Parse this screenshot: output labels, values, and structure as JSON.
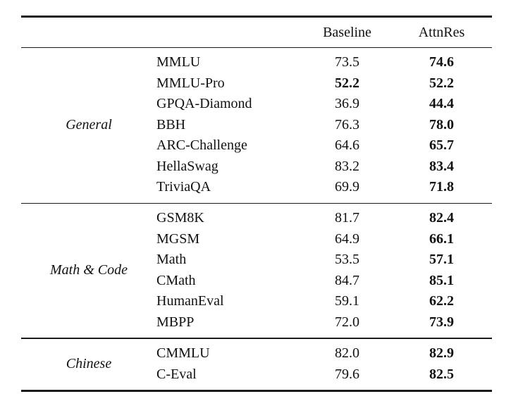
{
  "table": {
    "header": {
      "baseline": "Baseline",
      "attnres": "AttnRes"
    },
    "sections": [
      {
        "category": "General",
        "rows": [
          {
            "benchmark": "MMLU",
            "baseline": "73.5",
            "baseline_bold": false,
            "attnres": "74.6",
            "attnres_bold": true
          },
          {
            "benchmark": "MMLU-Pro",
            "baseline": "52.2",
            "baseline_bold": true,
            "attnres": "52.2",
            "attnres_bold": true
          },
          {
            "benchmark": "GPQA-Diamond",
            "baseline": "36.9",
            "baseline_bold": false,
            "attnres": "44.4",
            "attnres_bold": true
          },
          {
            "benchmark": "BBH",
            "baseline": "76.3",
            "baseline_bold": false,
            "attnres": "78.0",
            "attnres_bold": true
          },
          {
            "benchmark": "ARC-Challenge",
            "baseline": "64.6",
            "baseline_bold": false,
            "attnres": "65.7",
            "attnres_bold": true
          },
          {
            "benchmark": "HellaSwag",
            "baseline": "83.2",
            "baseline_bold": false,
            "attnres": "83.4",
            "attnres_bold": true
          },
          {
            "benchmark": "TriviaQA",
            "baseline": "69.9",
            "baseline_bold": false,
            "attnres": "71.8",
            "attnres_bold": true
          }
        ]
      },
      {
        "category": "Math & Code",
        "rows": [
          {
            "benchmark": "GSM8K",
            "baseline": "81.7",
            "baseline_bold": false,
            "attnres": "82.4",
            "attnres_bold": true
          },
          {
            "benchmark": "MGSM",
            "baseline": "64.9",
            "baseline_bold": false,
            "attnres": "66.1",
            "attnres_bold": true
          },
          {
            "benchmark": "Math",
            "baseline": "53.5",
            "baseline_bold": false,
            "attnres": "57.1",
            "attnres_bold": true
          },
          {
            "benchmark": "CMath",
            "baseline": "84.7",
            "baseline_bold": false,
            "attnres": "85.1",
            "attnres_bold": true
          },
          {
            "benchmark": "HumanEval",
            "baseline": "59.1",
            "baseline_bold": false,
            "attnres": "62.2",
            "attnres_bold": true
          },
          {
            "benchmark": "MBPP",
            "baseline": "72.0",
            "baseline_bold": false,
            "attnres": "73.9",
            "attnres_bold": true
          }
        ]
      },
      {
        "category": "Chinese",
        "rows": [
          {
            "benchmark": "CMMLU",
            "baseline": "82.0",
            "baseline_bold": false,
            "attnres": "82.9",
            "attnres_bold": true
          },
          {
            "benchmark": "C-Eval",
            "baseline": "79.6",
            "baseline_bold": false,
            "attnres": "82.5",
            "attnres_bold": true
          }
        ]
      }
    ]
  }
}
